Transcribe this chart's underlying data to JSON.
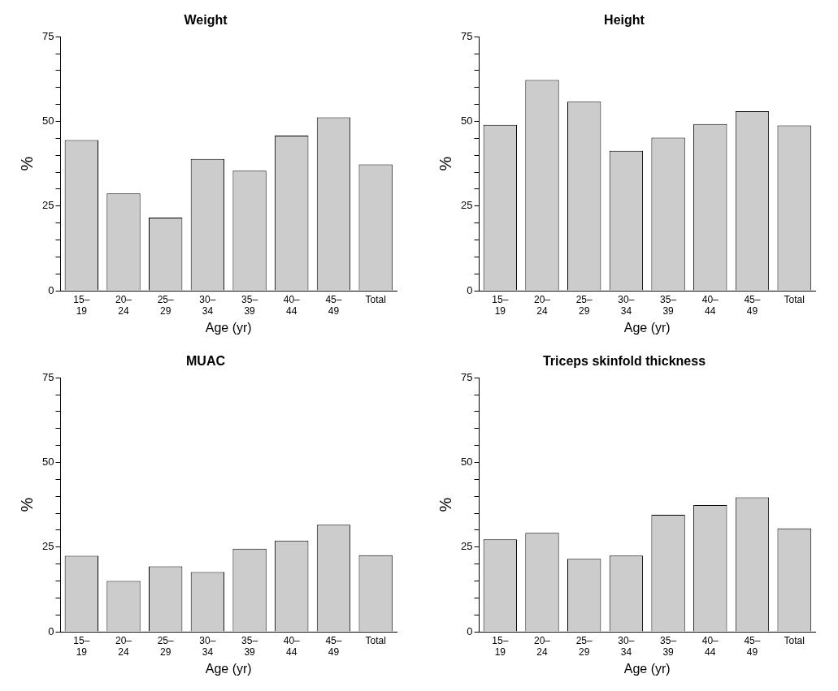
{
  "chart_data": [
    {
      "type": "bar",
      "title": "Weight",
      "xlabel": "Age (yr)",
      "ylabel": "%",
      "categories": [
        "15–19",
        "20–24",
        "25–29",
        "30–34",
        "35–39",
        "40–44",
        "45–49",
        "Total"
      ],
      "values": [
        44.5,
        28.7,
        21.6,
        38.9,
        35.4,
        45.8,
        51.2,
        37.3
      ],
      "color": "#cccccc",
      "ylim": [
        0,
        75
      ],
      "yticks": [
        0,
        {
          "value": 5,
          "label": null
        },
        {
          "value": 10,
          "label": null
        },
        {
          "value": 15,
          "label": null
        },
        {
          "value": 20,
          "label": null
        },
        25,
        {
          "value": 30,
          "label": null
        },
        {
          "value": 35,
          "label": null
        },
        {
          "value": 40,
          "label": null
        },
        {
          "value": 45,
          "label": null
        },
        50,
        {
          "value": 55,
          "label": null
        },
        {
          "value": 60,
          "label": null
        },
        {
          "value": 65,
          "label": null
        },
        {
          "value": 70,
          "label": null
        },
        75
      ],
      "grid": false,
      "legend": false
    },
    {
      "type": "bar",
      "title": "Height",
      "xlabel": "Age (yr)",
      "ylabel": "%",
      "categories": [
        "15–19",
        "20–24",
        "25–29",
        "30–34",
        "35–39",
        "40–44",
        "45–49",
        "Total"
      ],
      "values": [
        49.0,
        62.2,
        55.8,
        41.3,
        45.2,
        49.2,
        53.0,
        48.8
      ],
      "color": "#cccccc",
      "ylim": [
        0,
        75
      ],
      "yticks": [
        0,
        {
          "value": 5,
          "label": null
        },
        {
          "value": 10,
          "label": null
        },
        {
          "value": 15,
          "label": null
        },
        {
          "value": 20,
          "label": null
        },
        25,
        {
          "value": 30,
          "label": null
        },
        {
          "value": 35,
          "label": null
        },
        {
          "value": 40,
          "label": null
        },
        {
          "value": 45,
          "label": null
        },
        50,
        {
          "value": 55,
          "label": null
        },
        {
          "value": 60,
          "label": null
        },
        {
          "value": 65,
          "label": null
        },
        {
          "value": 70,
          "label": null
        },
        75
      ],
      "grid": false,
      "legend": false
    },
    {
      "type": "bar",
      "title": "MUAC",
      "xlabel": "Age (yr)",
      "ylabel": "%",
      "categories": [
        "15–19",
        "20–24",
        "25–29",
        "30–34",
        "35–39",
        "40–44",
        "45–49",
        "Total"
      ],
      "values": [
        22.4,
        15.0,
        19.3,
        17.6,
        24.5,
        26.9,
        31.6,
        22.6
      ],
      "color": "#cccccc",
      "ylim": [
        0,
        75
      ],
      "yticks": [
        0,
        {
          "value": 5,
          "label": null
        },
        {
          "value": 10,
          "label": null
        },
        {
          "value": 15,
          "label": null
        },
        {
          "value": 20,
          "label": null
        },
        25,
        {
          "value": 30,
          "label": null
        },
        {
          "value": 35,
          "label": null
        },
        {
          "value": 40,
          "label": null
        },
        {
          "value": 45,
          "label": null
        },
        50,
        {
          "value": 55,
          "label": null
        },
        {
          "value": 60,
          "label": null
        },
        {
          "value": 65,
          "label": null
        },
        {
          "value": 70,
          "label": null
        },
        75
      ],
      "grid": false,
      "legend": false
    },
    {
      "type": "bar",
      "title": "Triceps skinfold thickness",
      "xlabel": "Age (yr)",
      "ylabel": "%",
      "categories": [
        "15–19",
        "20–24",
        "25–29",
        "30–34",
        "35–39",
        "40–44",
        "45–49",
        "Total"
      ],
      "values": [
        27.3,
        29.2,
        21.5,
        22.5,
        34.5,
        37.4,
        39.7,
        30.5
      ],
      "color": "#cccccc",
      "ylim": [
        0,
        75
      ],
      "yticks": [
        0,
        {
          "value": 5,
          "label": null
        },
        {
          "value": 10,
          "label": null
        },
        {
          "value": 15,
          "label": null
        },
        {
          "value": 20,
          "label": null
        },
        25,
        {
          "value": 30,
          "label": null
        },
        {
          "value": 35,
          "label": null
        },
        {
          "value": 40,
          "label": null
        },
        {
          "value": 45,
          "label": null
        },
        50,
        {
          "value": 55,
          "label": null
        },
        {
          "value": 60,
          "label": null
        },
        {
          "value": 65,
          "label": null
        },
        {
          "value": 70,
          "label": null
        },
        75
      ],
      "grid": false,
      "legend": false
    }
  ]
}
